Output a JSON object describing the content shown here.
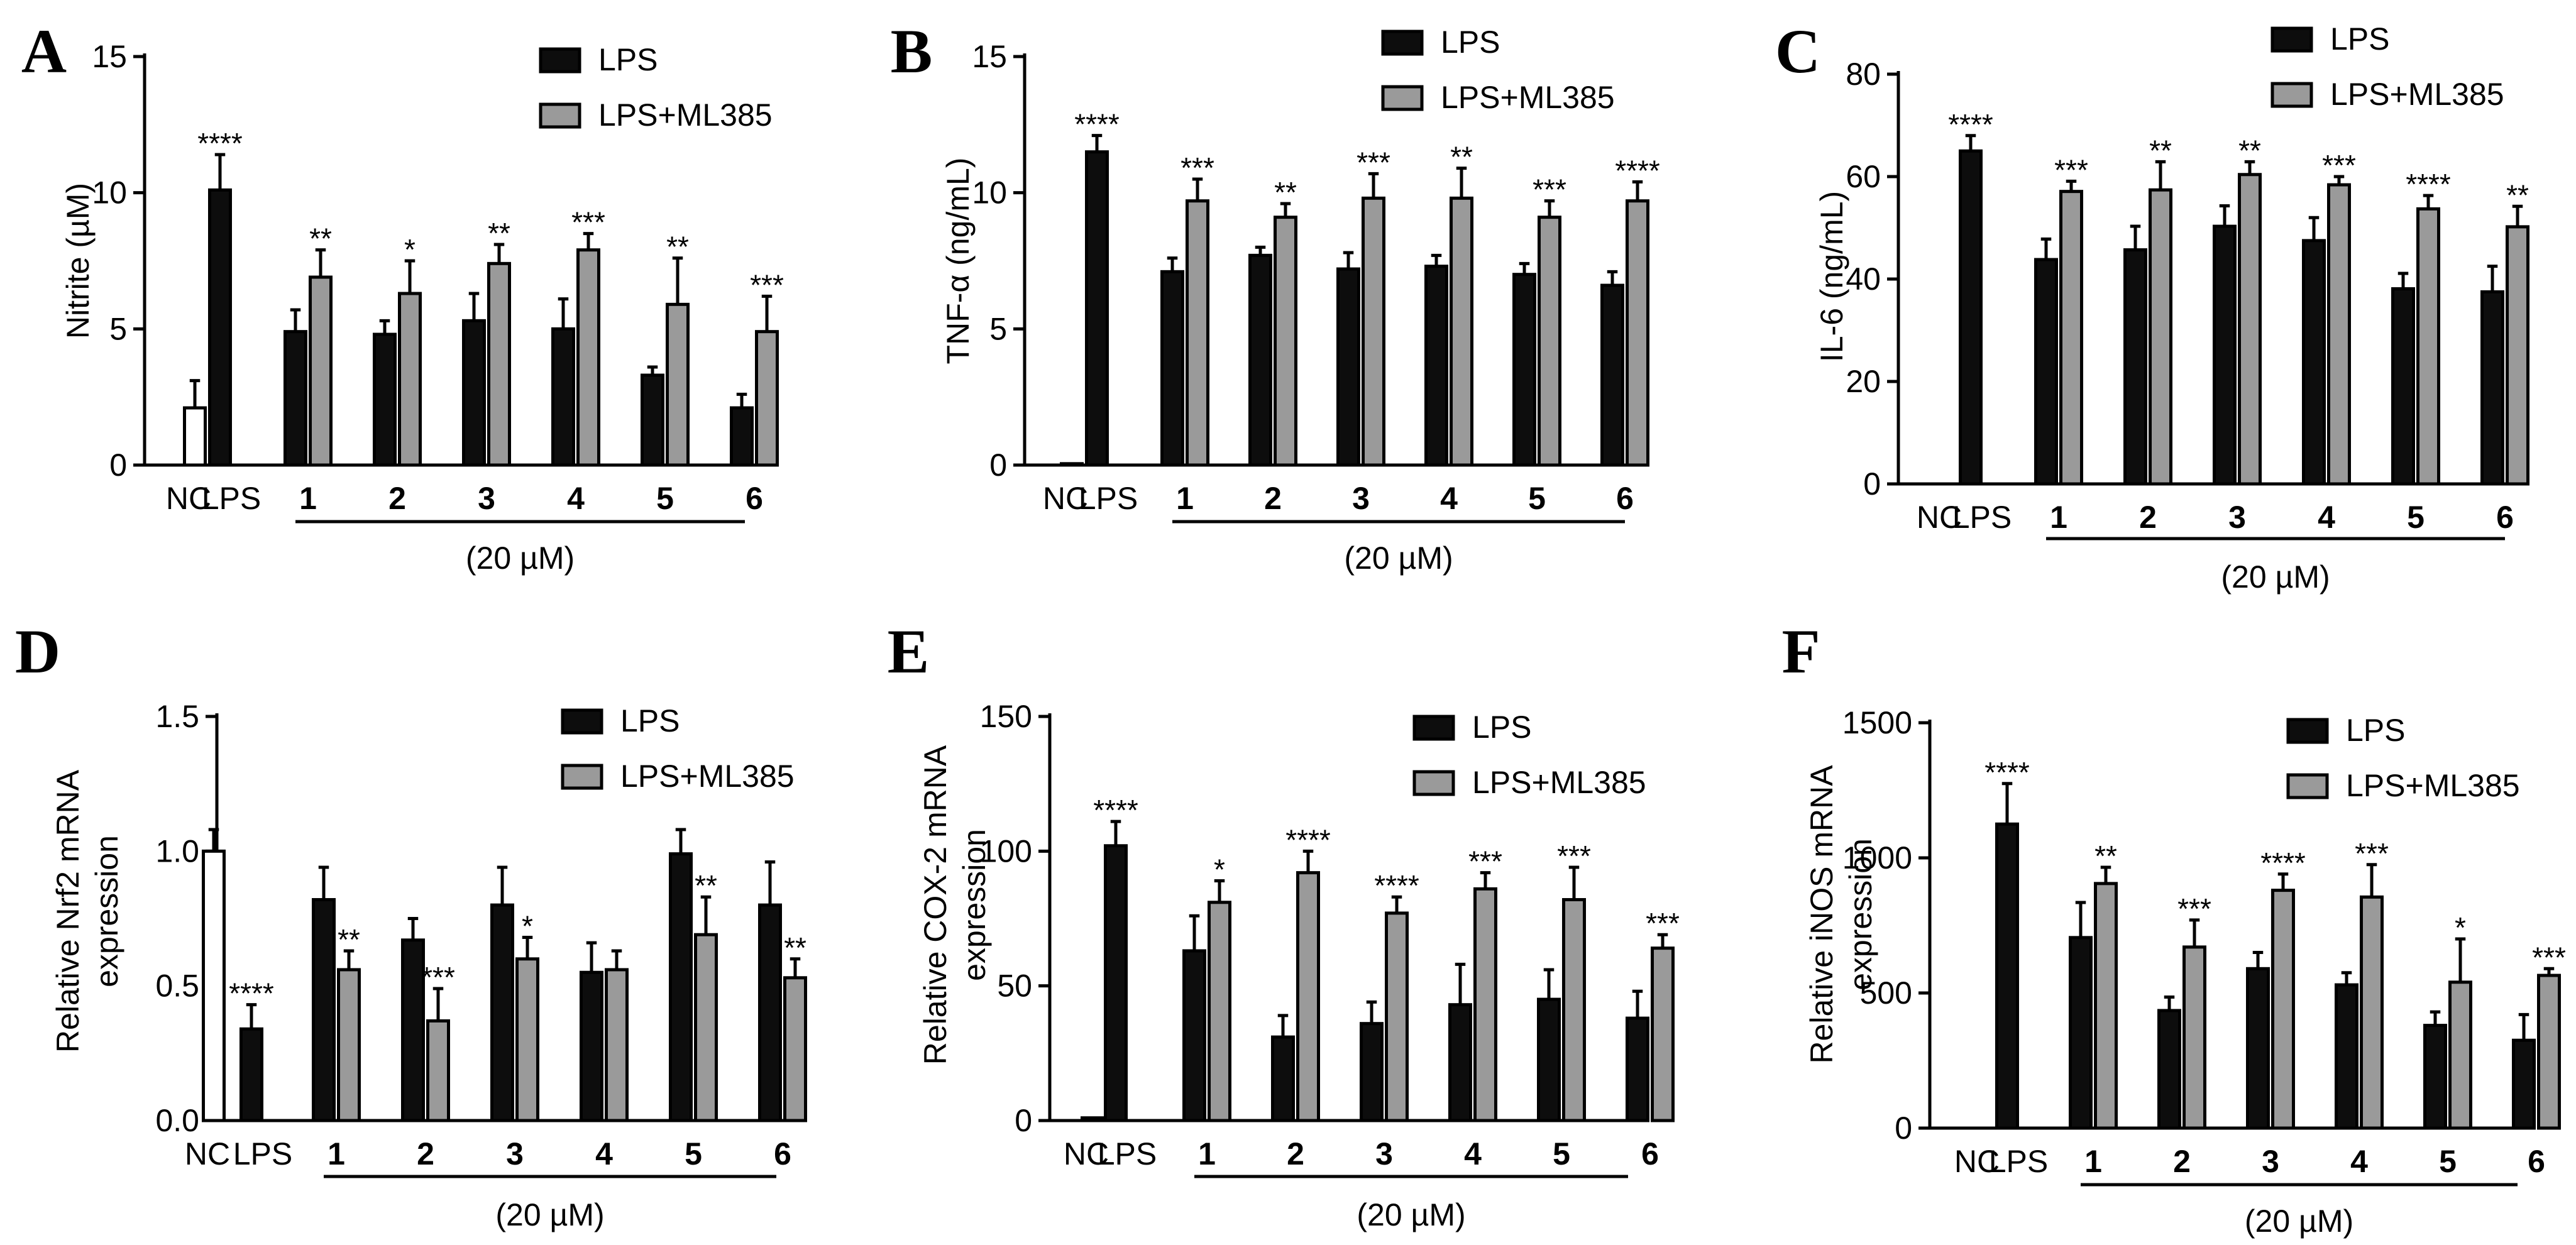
{
  "colors": {
    "black": "#0d0d0d",
    "gray": "#9a9a9a",
    "white": "#ffffff"
  },
  "chart_data": [
    {
      "panel": "A",
      "type": "bar",
      "ylabel": "Nitrite (µM)",
      "ylim": [
        0,
        15
      ],
      "yticks": [
        "0",
        "5",
        "10",
        "15"
      ],
      "ytick_values": [
        0,
        5,
        10,
        15
      ],
      "legend": [
        "LPS",
        "LPS+ML385"
      ],
      "xlabels": [
        "NC",
        "LPS",
        "1",
        "2",
        "3",
        "4",
        "5",
        "6"
      ],
      "group_label": "(20 µM)",
      "controls": [
        {
          "name": "NC",
          "value": 2.1,
          "err": 1.0,
          "sig": ""
        },
        {
          "name": "LPS",
          "value": 10.1,
          "err": 1.3,
          "sig": "****"
        }
      ],
      "series": [
        {
          "name": "LPS",
          "values": [
            4.9,
            4.8,
            5.3,
            5.0,
            3.3,
            2.1
          ],
          "errors": [
            0.8,
            0.5,
            1.0,
            1.1,
            0.3,
            0.5
          ],
          "sig": [
            "",
            "",
            "",
            "",
            "",
            ""
          ]
        },
        {
          "name": "LPS+ML385",
          "values": [
            6.9,
            6.3,
            7.4,
            7.9,
            5.9,
            4.9
          ],
          "errors": [
            1.0,
            1.2,
            0.7,
            0.6,
            1.7,
            1.3
          ],
          "sig": [
            "**",
            "*",
            "**",
            "***",
            "**",
            "***"
          ]
        }
      ]
    },
    {
      "panel": "B",
      "type": "bar",
      "ylabel": "TNF-α (ng/mL)",
      "ylim": [
        0,
        15
      ],
      "yticks": [
        "0",
        "5",
        "10",
        "15"
      ],
      "ytick_values": [
        0,
        5,
        10,
        15
      ],
      "legend": [
        "LPS",
        "LPS+ML385"
      ],
      "xlabels": [
        "NC",
        "LPS",
        "1",
        "2",
        "3",
        "4",
        "5",
        "6"
      ],
      "group_label": "(20 µM)",
      "controls": [
        {
          "name": "NC",
          "value": 0.05,
          "err": 0,
          "sig": ""
        },
        {
          "name": "LPS",
          "value": 11.5,
          "err": 0.6,
          "sig": "****"
        }
      ],
      "series": [
        {
          "name": "LPS",
          "values": [
            7.1,
            7.7,
            7.2,
            7.3,
            7.0,
            6.6
          ],
          "errors": [
            0.5,
            0.3,
            0.6,
            0.4,
            0.4,
            0.5
          ],
          "sig": [
            "",
            "",
            "",
            "",
            "",
            ""
          ]
        },
        {
          "name": "LPS+ML385",
          "values": [
            9.7,
            9.1,
            9.8,
            9.8,
            9.1,
            9.7
          ],
          "errors": [
            0.8,
            0.5,
            0.9,
            1.1,
            0.6,
            0.7
          ],
          "sig": [
            "***",
            "**",
            "***",
            "**",
            "***",
            "****"
          ]
        }
      ]
    },
    {
      "panel": "C",
      "type": "bar",
      "ylabel": "IL-6 (ng/mL)",
      "ylim": [
        0,
        80
      ],
      "yticks": [
        "0",
        "20",
        "40",
        "60",
        "80"
      ],
      "ytick_values": [
        0,
        20,
        40,
        60,
        80
      ],
      "legend": [
        "LPS",
        "LPS+ML385"
      ],
      "xlabels": [
        "NC",
        "LPS",
        "1",
        "2",
        "3",
        "4",
        "5",
        "6"
      ],
      "group_label": "(20 µM)",
      "controls": [
        {
          "name": "NC",
          "value": 0,
          "err": 0,
          "sig": ""
        },
        {
          "name": "LPS",
          "value": 65,
          "err": 3,
          "sig": "****"
        }
      ],
      "series": [
        {
          "name": "LPS",
          "values": [
            43.8,
            45.7,
            50.3,
            47.5,
            38.1,
            37.5
          ],
          "errors": [
            4.0,
            4.6,
            4.0,
            4.5,
            3.0,
            5.0
          ],
          "sig": [
            "",
            "",
            "",
            "",
            "",
            ""
          ]
        },
        {
          "name": "LPS+ML385",
          "values": [
            57.1,
            57.4,
            60.4,
            58.4,
            53.7,
            50.2
          ],
          "errors": [
            2.0,
            5.5,
            2.5,
            1.6,
            2.6,
            4.0
          ],
          "sig": [
            "***",
            "**",
            "**",
            "***",
            "****",
            "**"
          ]
        }
      ]
    },
    {
      "panel": "D",
      "type": "bar",
      "ylabel": [
        "Relative Nrf2 mRNA",
        "expression"
      ],
      "ylim": [
        0,
        1.5
      ],
      "yticks": [
        "0.0",
        "0.5",
        "1.0",
        "1.5"
      ],
      "ytick_values": [
        0,
        0.5,
        1.0,
        1.5
      ],
      "legend": [
        "LPS",
        "LPS+ML385"
      ],
      "xlabels": [
        "NC",
        "LPS",
        "1",
        "2",
        "3",
        "4",
        "5",
        "6"
      ],
      "group_label": "(20 µM)",
      "controls": [
        {
          "name": "NC",
          "value": 1.0,
          "err": 0.08,
          "sig": ""
        },
        {
          "name": "LPS",
          "value": 0.34,
          "err": 0.09,
          "sig": "****"
        }
      ],
      "series": [
        {
          "name": "LPS",
          "values": [
            0.82,
            0.67,
            0.8,
            0.55,
            0.99,
            0.8
          ],
          "errors": [
            0.12,
            0.08,
            0.14,
            0.11,
            0.09,
            0.16
          ],
          "sig": [
            "",
            "",
            "",
            "",
            "",
            ""
          ]
        },
        {
          "name": "LPS+ML385",
          "values": [
            0.56,
            0.37,
            0.6,
            0.56,
            0.69,
            0.53
          ],
          "errors": [
            0.07,
            0.12,
            0.08,
            0.07,
            0.14,
            0.07
          ],
          "sig": [
            "**",
            "***",
            "*",
            "",
            "**",
            "**"
          ]
        }
      ]
    },
    {
      "panel": "E",
      "type": "bar",
      "ylabel": [
        "Relative COX-2 mRNA",
        "expression"
      ],
      "ylim": [
        0,
        150
      ],
      "yticks": [
        "0",
        "50",
        "100",
        "150"
      ],
      "ytick_values": [
        0,
        50,
        100,
        150
      ],
      "legend": [
        "LPS",
        "LPS+ML385"
      ],
      "xlabels": [
        "NC",
        "LPS",
        "1",
        "2",
        "3",
        "4",
        "5",
        "6"
      ],
      "group_label": "(20 µM)",
      "controls": [
        {
          "name": "NC",
          "value": 1,
          "err": 0,
          "sig": ""
        },
        {
          "name": "LPS",
          "value": 102,
          "err": 9,
          "sig": "****"
        }
      ],
      "series": [
        {
          "name": "LPS",
          "values": [
            63,
            31,
            36,
            43,
            45,
            38
          ],
          "errors": [
            13,
            8,
            8,
            15,
            11,
            10
          ],
          "sig": [
            "",
            "",
            "",
            "",
            "",
            ""
          ]
        },
        {
          "name": "LPS+ML385",
          "values": [
            81,
            92,
            77,
            86,
            82,
            64
          ],
          "errors": [
            8,
            8,
            6,
            6,
            12,
            5
          ],
          "sig": [
            "*",
            "****",
            "****",
            "***",
            "***",
            "***"
          ]
        }
      ]
    },
    {
      "panel": "F",
      "type": "bar",
      "ylabel": [
        "Relative iNOS mRNA",
        "expression"
      ],
      "ylim": [
        0,
        1500
      ],
      "yticks": [
        "0",
        "500",
        "1000",
        "1500"
      ],
      "ytick_values": [
        0,
        500,
        1000,
        1500
      ],
      "legend": [
        "LPS",
        "LPS+ML385"
      ],
      "xlabels": [
        "NC",
        "LPS",
        "1",
        "2",
        "3",
        "4",
        "5",
        "6"
      ],
      "group_label": "(20 µM)",
      "controls": [
        {
          "name": "NC",
          "value": 0,
          "err": 0,
          "sig": ""
        },
        {
          "name": "LPS",
          "value": 1125,
          "err": 150,
          "sig": "****"
        }
      ],
      "series": [
        {
          "name": "LPS",
          "values": [
            705,
            435,
            590,
            530,
            380,
            325
          ],
          "errors": [
            130,
            50,
            60,
            45,
            50,
            95
          ],
          "sig": [
            "",
            "",
            "",
            "",
            "",
            ""
          ]
        },
        {
          "name": "LPS+ML385",
          "values": [
            905,
            670,
            880,
            855,
            540,
            565
          ],
          "errors": [
            60,
            100,
            60,
            120,
            160,
            25
          ],
          "sig": [
            "**",
            "***",
            "****",
            "***",
            "*",
            "***"
          ]
        }
      ]
    }
  ]
}
